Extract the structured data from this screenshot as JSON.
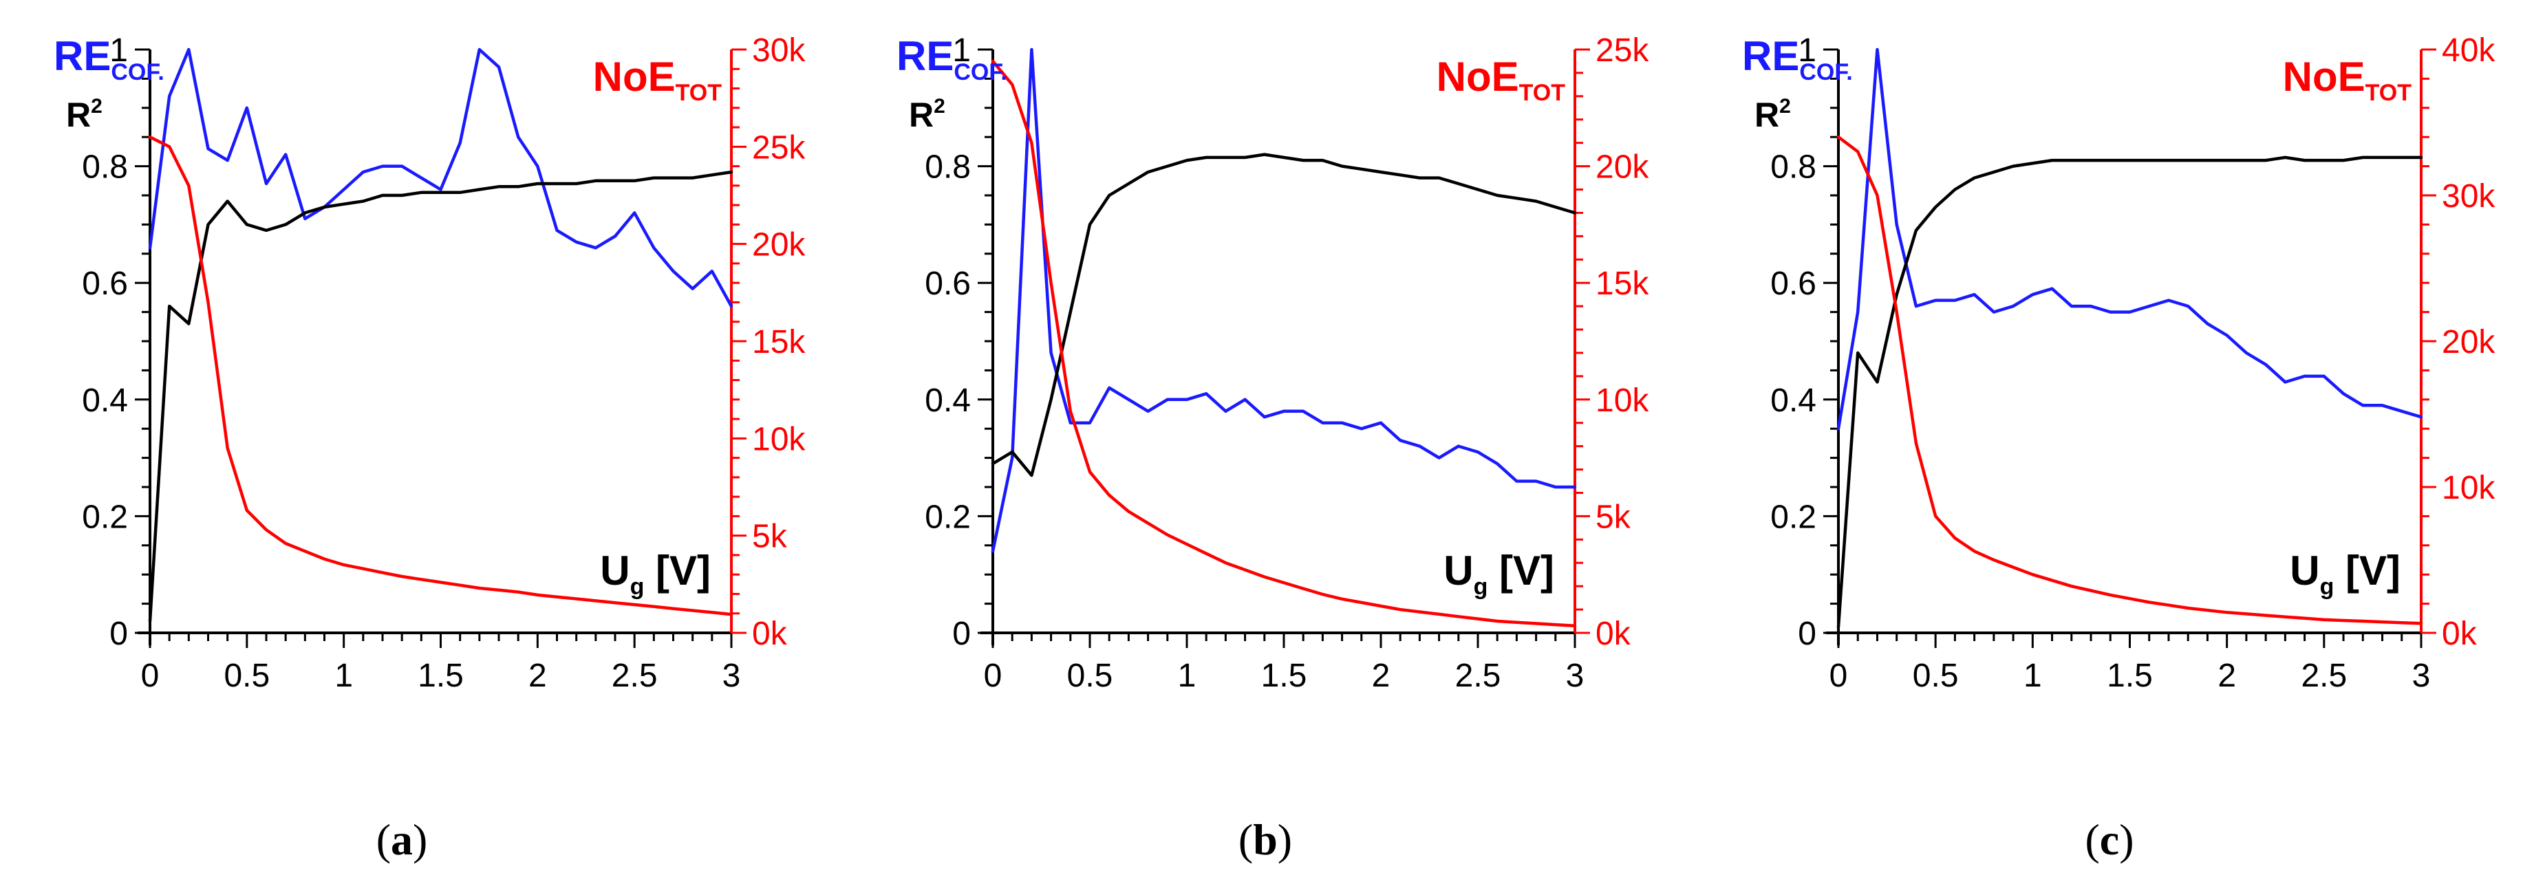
{
  "figure": {
    "panels": [
      "(a)",
      "(b)",
      "(c)"
    ]
  },
  "chart_data": [
    {
      "type": "line",
      "panel_label": "(a)",
      "xlabel": "U",
      "xlabel_sub": "g",
      "xlabel_unit": "[V]",
      "left_axis_labels": [
        {
          "main": "RE",
          "sub": "COF.",
          "color": "#1a1aff"
        },
        {
          "main": "R",
          "sup": "2",
          "color": "#000000"
        }
      ],
      "right_axis_label": {
        "main": "NoE",
        "sub": "TOT",
        "color": "#ff0000"
      },
      "xlim": [
        0,
        3
      ],
      "ylim_left": [
        0,
        1
      ],
      "ylim_right": [
        0,
        30000
      ],
      "x_ticks": [
        0,
        0.5,
        1,
        1.5,
        2,
        2.5,
        3
      ],
      "x_tick_labels": [
        "0",
        "0.5",
        "1",
        "1.5",
        "2",
        "2.5",
        "3"
      ],
      "left_ticks": [
        0,
        0.2,
        0.4,
        0.6,
        0.8,
        1
      ],
      "left_tick_labels": [
        "0",
        "0.2",
        "0.4",
        "0.6",
        "0.8",
        "1"
      ],
      "right_ticks": [
        0,
        5000,
        10000,
        15000,
        20000,
        25000,
        30000
      ],
      "right_tick_labels": [
        "0k",
        "5k",
        "10k",
        "15k",
        "20k",
        "25k",
        "30k"
      ],
      "x": [
        0,
        0.1,
        0.2,
        0.3,
        0.4,
        0.5,
        0.6,
        0.7,
        0.8,
        0.9,
        1.0,
        1.1,
        1.2,
        1.3,
        1.4,
        1.5,
        1.6,
        1.7,
        1.8,
        1.9,
        2.0,
        2.1,
        2.2,
        2.3,
        2.4,
        2.5,
        2.6,
        2.7,
        2.8,
        2.9,
        3.0
      ],
      "series": [
        {
          "name": "RE_COF.",
          "axis": "left",
          "color": "#1a1aff",
          "values": [
            0.66,
            0.92,
            1.0,
            0.83,
            0.81,
            0.9,
            0.77,
            0.82,
            0.71,
            0.73,
            0.76,
            0.79,
            0.8,
            0.8,
            0.78,
            0.76,
            0.84,
            1.0,
            0.97,
            0.85,
            0.8,
            0.69,
            0.67,
            0.66,
            0.68,
            0.72,
            0.66,
            0.62,
            0.59,
            0.62,
            0.56
          ]
        },
        {
          "name": "R2",
          "axis": "left",
          "color": "#000000",
          "values": [
            0.02,
            0.56,
            0.53,
            0.7,
            0.74,
            0.7,
            0.69,
            0.7,
            0.72,
            0.73,
            0.735,
            0.74,
            0.75,
            0.75,
            0.755,
            0.755,
            0.755,
            0.76,
            0.765,
            0.765,
            0.77,
            0.77,
            0.77,
            0.775,
            0.775,
            0.775,
            0.78,
            0.78,
            0.78,
            0.785,
            0.79
          ]
        },
        {
          "name": "NoE_TOT",
          "axis": "right",
          "color": "#ff0000",
          "values": [
            25500,
            25000,
            23000,
            17000,
            9500,
            6300,
            5300,
            4600,
            4200,
            3800,
            3500,
            3300,
            3100,
            2900,
            2750,
            2600,
            2450,
            2300,
            2200,
            2100,
            1950,
            1850,
            1750,
            1650,
            1550,
            1450,
            1350,
            1250,
            1150,
            1050,
            950
          ]
        }
      ]
    },
    {
      "type": "line",
      "panel_label": "(b)",
      "xlabel": "U",
      "xlabel_sub": "g",
      "xlabel_unit": "[V]",
      "left_axis_labels": [
        {
          "main": "RE",
          "sub": "COF.",
          "color": "#1a1aff"
        },
        {
          "main": "R",
          "sup": "2",
          "color": "#000000"
        }
      ],
      "right_axis_label": {
        "main": "NoE",
        "sub": "TOT",
        "color": "#ff0000"
      },
      "xlim": [
        0,
        3
      ],
      "ylim_left": [
        0,
        1
      ],
      "ylim_right": [
        0,
        25000
      ],
      "x_ticks": [
        0,
        0.5,
        1,
        1.5,
        2,
        2.5,
        3
      ],
      "x_tick_labels": [
        "0",
        "0.5",
        "1",
        "1.5",
        "2",
        "2.5",
        "3"
      ],
      "left_ticks": [
        0,
        0.2,
        0.4,
        0.6,
        0.8,
        1
      ],
      "left_tick_labels": [
        "0",
        "0.2",
        "0.4",
        "0.6",
        "0.8",
        "1"
      ],
      "right_ticks": [
        0,
        5000,
        10000,
        15000,
        20000,
        25000
      ],
      "right_tick_labels": [
        "0k",
        "5k",
        "10k",
        "15k",
        "20k",
        "25k"
      ],
      "x": [
        0,
        0.1,
        0.2,
        0.3,
        0.4,
        0.5,
        0.6,
        0.7,
        0.8,
        0.9,
        1.0,
        1.1,
        1.2,
        1.3,
        1.4,
        1.5,
        1.6,
        1.7,
        1.8,
        1.9,
        2.0,
        2.1,
        2.2,
        2.3,
        2.4,
        2.5,
        2.6,
        2.7,
        2.8,
        2.9,
        3.0
      ],
      "series": [
        {
          "name": "RE_COF.",
          "axis": "left",
          "color": "#1a1aff",
          "values": [
            0.14,
            0.3,
            1.0,
            0.48,
            0.36,
            0.36,
            0.42,
            0.4,
            0.38,
            0.4,
            0.4,
            0.41,
            0.38,
            0.4,
            0.37,
            0.38,
            0.38,
            0.36,
            0.36,
            0.35,
            0.36,
            0.33,
            0.32,
            0.3,
            0.32,
            0.31,
            0.29,
            0.26,
            0.26,
            0.25,
            0.25
          ]
        },
        {
          "name": "R2",
          "axis": "left",
          "color": "#000000",
          "values": [
            0.29,
            0.31,
            0.27,
            0.4,
            0.55,
            0.7,
            0.75,
            0.77,
            0.79,
            0.8,
            0.81,
            0.815,
            0.815,
            0.815,
            0.82,
            0.815,
            0.81,
            0.81,
            0.8,
            0.795,
            0.79,
            0.785,
            0.78,
            0.78,
            0.77,
            0.76,
            0.75,
            0.745,
            0.74,
            0.73,
            0.72
          ]
        },
        {
          "name": "NoE_TOT",
          "axis": "right",
          "color": "#ff0000",
          "values": [
            24500,
            23500,
            21000,
            15000,
            9500,
            6900,
            5900,
            5200,
            4700,
            4200,
            3800,
            3400,
            3000,
            2700,
            2400,
            2150,
            1900,
            1650,
            1450,
            1300,
            1150,
            1000,
            900,
            800,
            700,
            600,
            500,
            450,
            400,
            350,
            300
          ]
        }
      ]
    },
    {
      "type": "line",
      "panel_label": "(c)",
      "xlabel": "U",
      "xlabel_sub": "g",
      "xlabel_unit": "[V]",
      "left_axis_labels": [
        {
          "main": "RE",
          "sub": "COF.",
          "color": "#1a1aff"
        },
        {
          "main": "R",
          "sup": "2",
          "color": "#000000"
        }
      ],
      "right_axis_label": {
        "main": "NoE",
        "sub": "TOT",
        "color": "#ff0000"
      },
      "xlim": [
        0,
        3
      ],
      "ylim_left": [
        0,
        1
      ],
      "ylim_right": [
        0,
        40000
      ],
      "x_ticks": [
        0,
        0.5,
        1,
        1.5,
        2,
        2.5,
        3
      ],
      "x_tick_labels": [
        "0",
        "0.5",
        "1",
        "1.5",
        "2",
        "2.5",
        "3"
      ],
      "left_ticks": [
        0,
        0.2,
        0.4,
        0.6,
        0.8,
        1
      ],
      "left_tick_labels": [
        "0",
        "0.2",
        "0.4",
        "0.6",
        "0.8",
        "1"
      ],
      "right_ticks": [
        0,
        10000,
        20000,
        30000,
        40000
      ],
      "right_tick_labels": [
        "0k",
        "10k",
        "20k",
        "30k",
        "40k"
      ],
      "x": [
        0,
        0.1,
        0.2,
        0.3,
        0.4,
        0.5,
        0.6,
        0.7,
        0.8,
        0.9,
        1.0,
        1.1,
        1.2,
        1.3,
        1.4,
        1.5,
        1.6,
        1.7,
        1.8,
        1.9,
        2.0,
        2.1,
        2.2,
        2.3,
        2.4,
        2.5,
        2.6,
        2.7,
        2.8,
        2.9,
        3.0
      ],
      "series": [
        {
          "name": "RE_COF.",
          "axis": "left",
          "color": "#1a1aff",
          "values": [
            0.35,
            0.55,
            1.0,
            0.7,
            0.56,
            0.57,
            0.57,
            0.58,
            0.55,
            0.56,
            0.58,
            0.59,
            0.56,
            0.56,
            0.55,
            0.55,
            0.56,
            0.57,
            0.56,
            0.53,
            0.51,
            0.48,
            0.46,
            0.43,
            0.44,
            0.44,
            0.41,
            0.39,
            0.39,
            0.38,
            0.37
          ]
        },
        {
          "name": "R2",
          "axis": "left",
          "color": "#000000",
          "values": [
            0.01,
            0.48,
            0.43,
            0.58,
            0.69,
            0.73,
            0.76,
            0.78,
            0.79,
            0.8,
            0.805,
            0.81,
            0.81,
            0.81,
            0.81,
            0.81,
            0.81,
            0.81,
            0.81,
            0.81,
            0.81,
            0.81,
            0.81,
            0.815,
            0.81,
            0.81,
            0.81,
            0.815,
            0.815,
            0.815,
            0.815
          ]
        },
        {
          "name": "NoE_TOT",
          "axis": "right",
          "color": "#ff0000",
          "values": [
            34000,
            33000,
            30000,
            22000,
            13000,
            8000,
            6500,
            5600,
            5000,
            4500,
            4000,
            3600,
            3200,
            2900,
            2600,
            2350,
            2100,
            1900,
            1700,
            1550,
            1400,
            1300,
            1200,
            1100,
            1000,
            900,
            850,
            800,
            750,
            700,
            650
          ]
        }
      ]
    }
  ]
}
